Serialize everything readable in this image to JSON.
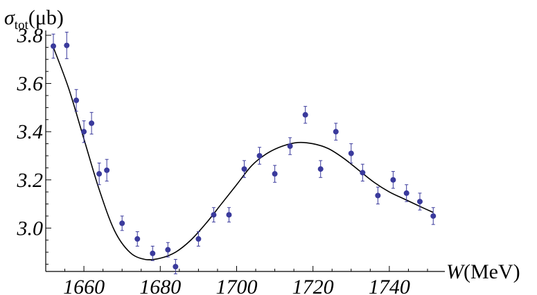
{
  "chart_data": {
    "type": "scatter",
    "title": "",
    "ylabel": {
      "symbol": "σ",
      "subscript": "tot",
      "unit": "(μb)"
    },
    "xlabel": {
      "symbol": "W",
      "unit": "(MeV)"
    },
    "xlim": [
      1650,
      1752
    ],
    "ylim": [
      2.82,
      3.82
    ],
    "x_origin": 1650,
    "y_origin": 2.82,
    "xticks": [
      1660,
      1680,
      1700,
      1720,
      1740
    ],
    "yticks": [
      3.0,
      3.2,
      3.4,
      3.6,
      3.8
    ],
    "ytick_labels": [
      "3.0",
      "3.2",
      "3.4",
      "3.6",
      "3.8"
    ],
    "grid": false,
    "legend": "none",
    "colors": {
      "points": "#3a3a9c",
      "curve": "#000000"
    },
    "series": [
      {
        "kind": "data-with-error-bars",
        "points": [
          {
            "x": 1652,
            "y": 3.755,
            "err": 0.05
          },
          {
            "x": 1655.5,
            "y": 3.758,
            "err": 0.055
          },
          {
            "x": 1658,
            "y": 3.53,
            "err": 0.045
          },
          {
            "x": 1660,
            "y": 3.4,
            "err": 0.045
          },
          {
            "x": 1662,
            "y": 3.435,
            "err": 0.045
          },
          {
            "x": 1664,
            "y": 3.225,
            "err": 0.045
          },
          {
            "x": 1666,
            "y": 3.24,
            "err": 0.045
          },
          {
            "x": 1670,
            "y": 3.02,
            "err": 0.03
          },
          {
            "x": 1674,
            "y": 2.955,
            "err": 0.03
          },
          {
            "x": 1678,
            "y": 2.895,
            "err": 0.03
          },
          {
            "x": 1682,
            "y": 2.91,
            "err": 0.03
          },
          {
            "x": 1684,
            "y": 2.84,
            "err": 0.03
          },
          {
            "x": 1690,
            "y": 2.955,
            "err": 0.03
          },
          {
            "x": 1694,
            "y": 3.055,
            "err": 0.03
          },
          {
            "x": 1698,
            "y": 3.055,
            "err": 0.03
          },
          {
            "x": 1702,
            "y": 3.245,
            "err": 0.035
          },
          {
            "x": 1706,
            "y": 3.3,
            "err": 0.035
          },
          {
            "x": 1710,
            "y": 3.225,
            "err": 0.035
          },
          {
            "x": 1714,
            "y": 3.34,
            "err": 0.035
          },
          {
            "x": 1718,
            "y": 3.47,
            "err": 0.035
          },
          {
            "x": 1722,
            "y": 3.245,
            "err": 0.035
          },
          {
            "x": 1726,
            "y": 3.4,
            "err": 0.035
          },
          {
            "x": 1730,
            "y": 3.31,
            "err": 0.04
          },
          {
            "x": 1733,
            "y": 3.23,
            "err": 0.035
          },
          {
            "x": 1737,
            "y": 3.135,
            "err": 0.035
          },
          {
            "x": 1741,
            "y": 3.2,
            "err": 0.035
          },
          {
            "x": 1744.5,
            "y": 3.145,
            "err": 0.035
          },
          {
            "x": 1748,
            "y": 3.11,
            "err": 0.035
          },
          {
            "x": 1751.5,
            "y": 3.05,
            "err": 0.035
          }
        ]
      },
      {
        "kind": "fit-curve",
        "x": [
          1652,
          1656,
          1660,
          1664,
          1668,
          1672,
          1676,
          1680,
          1684,
          1688,
          1692,
          1696,
          1700,
          1704,
          1708,
          1712,
          1716,
          1720,
          1724,
          1728,
          1732,
          1736,
          1740,
          1744,
          1748,
          1751.5
        ],
        "y": [
          3.75,
          3.58,
          3.37,
          3.16,
          2.99,
          2.9,
          2.87,
          2.875,
          2.9,
          2.95,
          3.02,
          3.1,
          3.18,
          3.26,
          3.31,
          3.34,
          3.355,
          3.35,
          3.33,
          3.29,
          3.24,
          3.19,
          3.15,
          3.12,
          3.09,
          3.065
        ]
      }
    ]
  }
}
